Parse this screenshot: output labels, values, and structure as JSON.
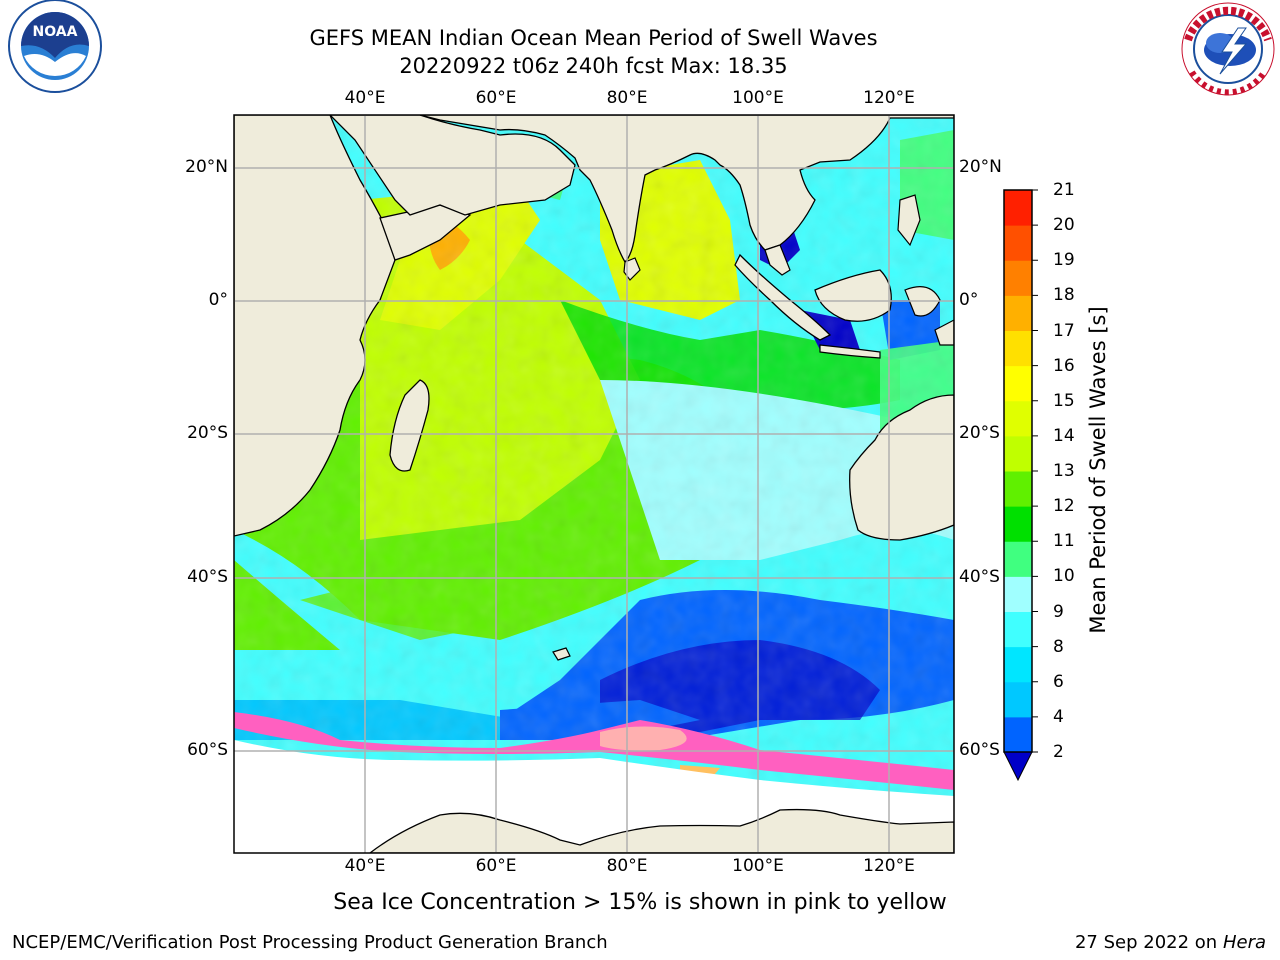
{
  "header": {
    "title_line1": "GEFS MEAN Indian Ocean Mean Period of Swell Waves",
    "title_line2": "20220922 t06z 240h fcst   Max: 18.35"
  },
  "logos": {
    "left": "noaa-logo-icon",
    "right": "national-weather-service-logo-icon"
  },
  "map": {
    "lon_labels": [
      "40°E",
      "60°E",
      "80°E",
      "100°E",
      "120°E"
    ],
    "lat_labels": [
      "20°N",
      "0°",
      "20°S",
      "40°S",
      "60°S"
    ],
    "colors": {
      "land": "#efecdb",
      "sea_ice_region": "#ffffff",
      "grid": "#b0b0b0",
      "coast": "#000000"
    }
  },
  "colorbar": {
    "title": "Mean Period of Swell Waves [s]",
    "ticks": [
      "21",
      "20",
      "19",
      "18",
      "17",
      "16",
      "15",
      "14",
      "13",
      "12",
      "11",
      "10",
      "9",
      "8",
      "6",
      "4",
      "2"
    ],
    "colors": [
      "#0000c8",
      "#0064ff",
      "#00c8ff",
      "#00e6ff",
      "#40ffff",
      "#a0ffff",
      "#40ff80",
      "#00e000",
      "#60f000",
      "#c0ff00",
      "#e0ff00",
      "#ffff00",
      "#ffe000",
      "#ffb000",
      "#ff8000",
      "#ff5000",
      "#ff2000",
      "#ff0000"
    ]
  },
  "note": "Sea Ice Concentration > 15% is shown in pink to yellow",
  "footer": {
    "left": "NCEP/EMC/Verification Post Processing Product Generation Branch",
    "right_date": "27 Sep 2022 on",
    "right_host": "Hera"
  }
}
